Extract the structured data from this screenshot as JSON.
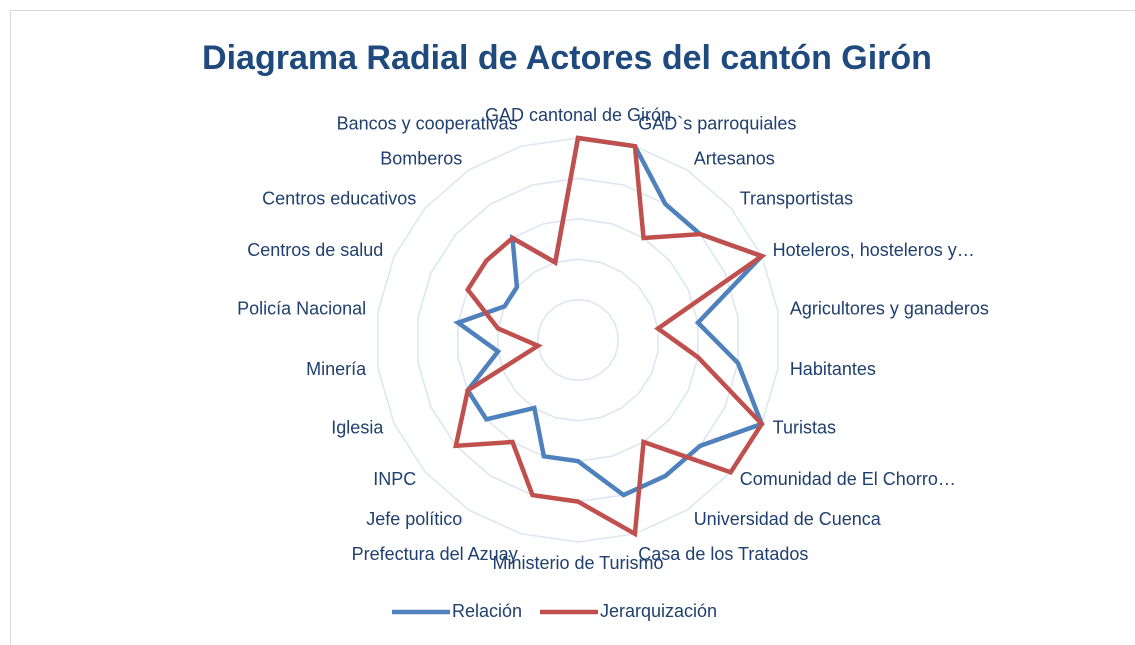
{
  "chart_data": {
    "type": "radar",
    "title": "Diagrama Radial de Actores del cantón Girón",
    "categories": [
      "GAD cantonal de Girón",
      "GAD`s parroquiales",
      "Artesanos",
      "Transportistas",
      "Hoteleros, hosteleros y…",
      "Agricultores y ganaderos",
      "Habitantes",
      "Turistas",
      "Comunidad de El Chorro…",
      "Universidad de Cuenca",
      "Casa de los Tratados",
      "Ministerio de Turismo",
      "Prefectura del Azuay",
      "Jefe político",
      "INPC",
      "Iglesia",
      "Minería",
      "Policía Nacional",
      "Centros de salud",
      "Centros educativos",
      "Bomberos",
      "Bancos y cooperativas"
    ],
    "series": [
      {
        "name": "Relación",
        "color": "#4f81bd",
        "values": [
          5,
          5,
          4,
          4,
          5,
          3,
          4,
          5,
          4,
          4,
          4,
          3,
          3,
          2,
          3,
          3,
          2,
          3,
          2,
          2,
          3,
          2
        ]
      },
      {
        "name": "Jerarquización",
        "color": "#c0504d",
        "values": [
          5,
          5,
          3,
          4,
          5,
          2,
          3,
          5,
          5,
          3,
          5,
          4,
          4,
          3,
          4,
          3,
          1,
          2,
          3,
          3,
          3,
          2
        ]
      }
    ],
    "ylim": [
      0,
      5
    ],
    "yticks": [
      0,
      1,
      2,
      3,
      4,
      5
    ],
    "grid": true,
    "legend": "bottom"
  }
}
